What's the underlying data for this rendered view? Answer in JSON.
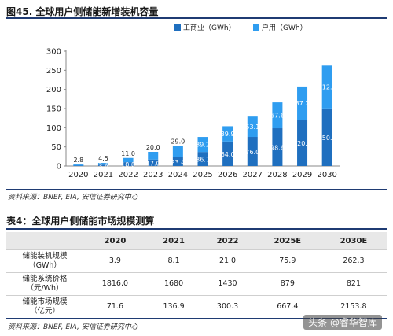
{
  "figure": {
    "title": "图45. 全球用户侧储能新增装机容量",
    "source": "资料来源：BNEF, EIA, 安信证券研究中心"
  },
  "chart_data": {
    "type": "bar",
    "stacked": true,
    "categories": [
      "2020",
      "2021",
      "2022",
      "2023",
      "2024",
      "2025",
      "2026",
      "2027",
      "2028",
      "2029",
      "2030"
    ],
    "series": [
      {
        "name": "工商业（GWh）",
        "color": "#1f6fbf",
        "values": [
          1.1,
          3.6,
          10.0,
          17.0,
          23.4,
          36.7,
          64.0,
          76.0,
          98.6,
          120.5,
          150.3
        ]
      },
      {
        "name": "户用（GWh）",
        "color": "#2f9df0",
        "values": [
          2.8,
          4.5,
          11.0,
          20.0,
          29.0,
          39.2,
          39.9,
          53.1,
          67.6,
          87.2,
          112.1
        ]
      }
    ],
    "bottom_labels": [
      "",
      "3.6",
      "10.0",
      "17.0",
      "23.4",
      "36.7",
      "64.0",
      "76.0",
      "98.6",
      "120.5",
      "150.3"
    ],
    "top_labels": [
      "2.8",
      "4.5",
      "11.0",
      "20.0",
      "29.0",
      "39.2",
      "39.9",
      "53.1",
      "67.6",
      "87.2",
      "112.1"
    ],
    "yticks": [
      "0",
      "50",
      "100",
      "150",
      "200",
      "250",
      "300"
    ],
    "ylim": [
      0,
      300
    ],
    "legend_position": "top-right",
    "grid": false
  },
  "table": {
    "title": "表4：全球用户侧储能市场规模测算",
    "headers": [
      "",
      "2020",
      "2021",
      "2022",
      "2025E",
      "2030E"
    ],
    "rows": [
      {
        "label_line1": "储能装机规模",
        "label_line2": "（GWh）",
        "values": [
          "3.9",
          "8.1",
          "21.0",
          "75.9",
          "262.3"
        ]
      },
      {
        "label_line1": "储能系统价格",
        "label_line2": "（元/Wh）",
        "values": [
          "1816.0",
          "1680",
          "1430",
          "879",
          "821"
        ]
      },
      {
        "label_line1": "储能市场规模",
        "label_line2": "（亿元）",
        "values": [
          "71.6",
          "136.9",
          "300.3",
          "667.4",
          "2153.8"
        ]
      }
    ],
    "source": "资料来源：BNEF, EIA, 安信证券研究中心"
  },
  "watermark": "头条 @睿华智库"
}
